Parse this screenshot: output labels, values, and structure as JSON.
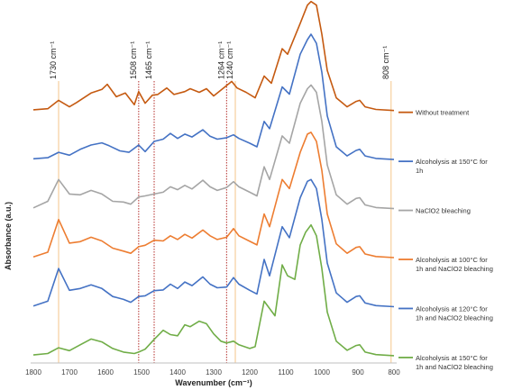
{
  "chart_data": {
    "type": "line",
    "title": "",
    "xlabel": "Wavenumber (cm⁻¹)",
    "ylabel": "Absorbance (a.u.)",
    "xlim": [
      1800,
      800
    ],
    "x_reversed": true,
    "x_ticks": [
      1800,
      1700,
      1600,
      1500,
      1400,
      1300,
      1200,
      1100,
      1000,
      900,
      800
    ],
    "y_ticks_shown": false,
    "grid": false,
    "legend_position": "right",
    "annotations": [
      {
        "x": 1730,
        "label": "1730 cm⁻¹",
        "color": "#f5c68a",
        "style": "solid"
      },
      {
        "x": 1508,
        "label": "1508 cm⁻¹",
        "color": "#c0504d",
        "style": "dotted"
      },
      {
        "x": 1465,
        "label": "1465 cm⁻¹",
        "color": "#c0504d",
        "style": "dotted"
      },
      {
        "x": 1264,
        "label": "1264 cm⁻¹",
        "color": "#c0504d",
        "style": "dotted"
      },
      {
        "x": 1240,
        "label": "1240 cm⁻¹",
        "color": "#f5c68a",
        "style": "solid"
      },
      {
        "x": 808,
        "label": "808 cm⁻¹",
        "color": "#f5c68a",
        "style": "solid"
      }
    ],
    "series": [
      {
        "name": "Without treatment",
        "color": "#c55a11",
        "offset": 5.0,
        "points": [
          [
            1800,
            0.02
          ],
          [
            1760,
            0.05
          ],
          [
            1730,
            0.28
          ],
          [
            1700,
            0.1
          ],
          [
            1680,
            0.22
          ],
          [
            1640,
            0.48
          ],
          [
            1610,
            0.58
          ],
          [
            1595,
            0.72
          ],
          [
            1570,
            0.38
          ],
          [
            1545,
            0.48
          ],
          [
            1520,
            0.16
          ],
          [
            1508,
            0.52
          ],
          [
            1490,
            0.2
          ],
          [
            1470,
            0.42
          ],
          [
            1455,
            0.44
          ],
          [
            1430,
            0.62
          ],
          [
            1410,
            0.44
          ],
          [
            1380,
            0.52
          ],
          [
            1365,
            0.6
          ],
          [
            1340,
            0.5
          ],
          [
            1320,
            0.6
          ],
          [
            1300,
            0.4
          ],
          [
            1270,
            0.64
          ],
          [
            1250,
            0.8
          ],
          [
            1235,
            0.62
          ],
          [
            1210,
            0.5
          ],
          [
            1185,
            0.35
          ],
          [
            1160,
            0.95
          ],
          [
            1140,
            0.75
          ],
          [
            1110,
            1.7
          ],
          [
            1095,
            1.55
          ],
          [
            1060,
            2.4
          ],
          [
            1040,
            2.9
          ],
          [
            1030,
            3.0
          ],
          [
            1015,
            2.9
          ],
          [
            1000,
            2.1
          ],
          [
            985,
            1.1
          ],
          [
            960,
            0.35
          ],
          [
            930,
            0.1
          ],
          [
            905,
            0.25
          ],
          [
            895,
            0.28
          ],
          [
            880,
            0.1
          ],
          [
            850,
            0.03
          ],
          [
            800,
            0.0
          ]
        ]
      },
      {
        "name": "Alcoholysis at 150°C for 1h",
        "color": "#4472c4",
        "offset": 4.0,
        "points": [
          [
            1800,
            0.02
          ],
          [
            1760,
            0.05
          ],
          [
            1730,
            0.2
          ],
          [
            1700,
            0.12
          ],
          [
            1670,
            0.28
          ],
          [
            1640,
            0.4
          ],
          [
            1610,
            0.46
          ],
          [
            1590,
            0.38
          ],
          [
            1560,
            0.24
          ],
          [
            1535,
            0.2
          ],
          [
            1508,
            0.4
          ],
          [
            1490,
            0.22
          ],
          [
            1465,
            0.5
          ],
          [
            1440,
            0.56
          ],
          [
            1420,
            0.72
          ],
          [
            1400,
            0.58
          ],
          [
            1380,
            0.7
          ],
          [
            1360,
            0.62
          ],
          [
            1330,
            0.82
          ],
          [
            1310,
            0.64
          ],
          [
            1290,
            0.56
          ],
          [
            1264,
            0.6
          ],
          [
            1245,
            0.68
          ],
          [
            1230,
            0.58
          ],
          [
            1200,
            0.45
          ],
          [
            1180,
            0.35
          ],
          [
            1160,
            1.05
          ],
          [
            1145,
            0.85
          ],
          [
            1110,
            2.0
          ],
          [
            1090,
            1.8
          ],
          [
            1060,
            2.9
          ],
          [
            1040,
            3.3
          ],
          [
            1030,
            3.45
          ],
          [
            1015,
            3.2
          ],
          [
            1000,
            2.4
          ],
          [
            985,
            1.2
          ],
          [
            960,
            0.35
          ],
          [
            930,
            0.1
          ],
          [
            905,
            0.25
          ],
          [
            895,
            0.28
          ],
          [
            880,
            0.1
          ],
          [
            850,
            0.03
          ],
          [
            800,
            0.0
          ]
        ]
      },
      {
        "name": "NaClO2 bleaching",
        "color": "#a5a5a5",
        "offset": 3.0,
        "points": [
          [
            1800,
            0.02
          ],
          [
            1760,
            0.2
          ],
          [
            1730,
            0.8
          ],
          [
            1700,
            0.4
          ],
          [
            1670,
            0.38
          ],
          [
            1640,
            0.5
          ],
          [
            1610,
            0.4
          ],
          [
            1580,
            0.2
          ],
          [
            1550,
            0.18
          ],
          [
            1530,
            0.12
          ],
          [
            1508,
            0.32
          ],
          [
            1490,
            0.35
          ],
          [
            1465,
            0.4
          ],
          [
            1440,
            0.45
          ],
          [
            1420,
            0.6
          ],
          [
            1400,
            0.52
          ],
          [
            1380,
            0.64
          ],
          [
            1360,
            0.54
          ],
          [
            1330,
            0.78
          ],
          [
            1310,
            0.6
          ],
          [
            1290,
            0.5
          ],
          [
            1264,
            0.58
          ],
          [
            1245,
            0.74
          ],
          [
            1230,
            0.6
          ],
          [
            1200,
            0.45
          ],
          [
            1180,
            0.35
          ],
          [
            1160,
            1.15
          ],
          [
            1145,
            0.8
          ],
          [
            1110,
            2.0
          ],
          [
            1090,
            1.8
          ],
          [
            1060,
            2.9
          ],
          [
            1040,
            3.3
          ],
          [
            1030,
            3.4
          ],
          [
            1015,
            3.2
          ],
          [
            1000,
            2.4
          ],
          [
            985,
            1.2
          ],
          [
            960,
            0.38
          ],
          [
            930,
            0.12
          ],
          [
            905,
            0.28
          ],
          [
            895,
            0.3
          ],
          [
            880,
            0.1
          ],
          [
            850,
            0.03
          ],
          [
            800,
            0.0
          ]
        ]
      },
      {
        "name": "Alcoholysis at 100°C for 1h and NaClO2 bleaching",
        "color": "#ed7d31",
        "offset": 2.0,
        "points": [
          [
            1800,
            0.02
          ],
          [
            1760,
            0.15
          ],
          [
            1730,
            1.05
          ],
          [
            1700,
            0.4
          ],
          [
            1670,
            0.44
          ],
          [
            1640,
            0.56
          ],
          [
            1610,
            0.46
          ],
          [
            1580,
            0.26
          ],
          [
            1550,
            0.18
          ],
          [
            1530,
            0.12
          ],
          [
            1508,
            0.3
          ],
          [
            1490,
            0.34
          ],
          [
            1465,
            0.48
          ],
          [
            1440,
            0.46
          ],
          [
            1420,
            0.6
          ],
          [
            1400,
            0.5
          ],
          [
            1380,
            0.64
          ],
          [
            1360,
            0.54
          ],
          [
            1330,
            0.76
          ],
          [
            1310,
            0.6
          ],
          [
            1290,
            0.5
          ],
          [
            1264,
            0.56
          ],
          [
            1245,
            0.8
          ],
          [
            1230,
            0.6
          ],
          [
            1200,
            0.45
          ],
          [
            1180,
            0.35
          ],
          [
            1160,
            1.2
          ],
          [
            1145,
            0.85
          ],
          [
            1110,
            2.15
          ],
          [
            1090,
            1.9
          ],
          [
            1060,
            2.9
          ],
          [
            1040,
            3.4
          ],
          [
            1030,
            3.45
          ],
          [
            1015,
            3.2
          ],
          [
            1000,
            2.4
          ],
          [
            985,
            1.2
          ],
          [
            960,
            0.38
          ],
          [
            930,
            0.12
          ],
          [
            905,
            0.28
          ],
          [
            895,
            0.3
          ],
          [
            880,
            0.1
          ],
          [
            850,
            0.03
          ],
          [
            800,
            0.0
          ]
        ]
      },
      {
        "name": "Alcoholysis at 120°C for 1h and NaClO2 bleaching",
        "color": "#4472c4",
        "offset": 1.0,
        "points": [
          [
            1800,
            0.02
          ],
          [
            1760,
            0.15
          ],
          [
            1730,
            1.05
          ],
          [
            1700,
            0.45
          ],
          [
            1670,
            0.5
          ],
          [
            1640,
            0.6
          ],
          [
            1610,
            0.5
          ],
          [
            1580,
            0.28
          ],
          [
            1550,
            0.2
          ],
          [
            1530,
            0.12
          ],
          [
            1508,
            0.28
          ],
          [
            1490,
            0.3
          ],
          [
            1465,
            0.44
          ],
          [
            1440,
            0.46
          ],
          [
            1420,
            0.62
          ],
          [
            1400,
            0.5
          ],
          [
            1380,
            0.68
          ],
          [
            1360,
            0.58
          ],
          [
            1330,
            0.82
          ],
          [
            1310,
            0.62
          ],
          [
            1290,
            0.52
          ],
          [
            1264,
            0.54
          ],
          [
            1245,
            0.8
          ],
          [
            1230,
            0.62
          ],
          [
            1200,
            0.45
          ],
          [
            1180,
            0.35
          ],
          [
            1160,
            1.3
          ],
          [
            1145,
            0.85
          ],
          [
            1110,
            2.2
          ],
          [
            1090,
            1.9
          ],
          [
            1060,
            3.0
          ],
          [
            1040,
            3.45
          ],
          [
            1030,
            3.5
          ],
          [
            1015,
            3.25
          ],
          [
            1000,
            2.4
          ],
          [
            985,
            1.2
          ],
          [
            960,
            0.38
          ],
          [
            930,
            0.12
          ],
          [
            905,
            0.28
          ],
          [
            895,
            0.3
          ],
          [
            880,
            0.1
          ],
          [
            850,
            0.03
          ],
          [
            800,
            0.0
          ]
        ]
      },
      {
        "name": "Alcoholysis at 150°C for 1h and NaClO2 bleaching",
        "color": "#70ad47",
        "offset": 0.0,
        "points": [
          [
            1800,
            0.02
          ],
          [
            1760,
            0.06
          ],
          [
            1730,
            0.22
          ],
          [
            1700,
            0.14
          ],
          [
            1670,
            0.3
          ],
          [
            1640,
            0.46
          ],
          [
            1610,
            0.38
          ],
          [
            1580,
            0.2
          ],
          [
            1550,
            0.1
          ],
          [
            1520,
            0.06
          ],
          [
            1508,
            0.1
          ],
          [
            1490,
            0.18
          ],
          [
            1465,
            0.45
          ],
          [
            1440,
            0.7
          ],
          [
            1420,
            0.58
          ],
          [
            1400,
            0.55
          ],
          [
            1380,
            0.85
          ],
          [
            1365,
            0.8
          ],
          [
            1340,
            0.95
          ],
          [
            1320,
            0.88
          ],
          [
            1300,
            0.6
          ],
          [
            1280,
            0.4
          ],
          [
            1264,
            0.35
          ],
          [
            1245,
            0.4
          ],
          [
            1230,
            0.3
          ],
          [
            1200,
            0.2
          ],
          [
            1185,
            0.25
          ],
          [
            1160,
            1.5
          ],
          [
            1145,
            1.3
          ],
          [
            1130,
            1.1
          ],
          [
            1110,
            2.5
          ],
          [
            1095,
            2.2
          ],
          [
            1075,
            2.1
          ],
          [
            1060,
            3.05
          ],
          [
            1045,
            3.4
          ],
          [
            1030,
            3.6
          ],
          [
            1015,
            3.3
          ],
          [
            1000,
            2.4
          ],
          [
            985,
            1.2
          ],
          [
            960,
            0.4
          ],
          [
            930,
            0.15
          ],
          [
            905,
            0.28
          ],
          [
            895,
            0.3
          ],
          [
            880,
            0.1
          ],
          [
            850,
            0.03
          ],
          [
            800,
            0.0
          ]
        ]
      }
    ]
  }
}
